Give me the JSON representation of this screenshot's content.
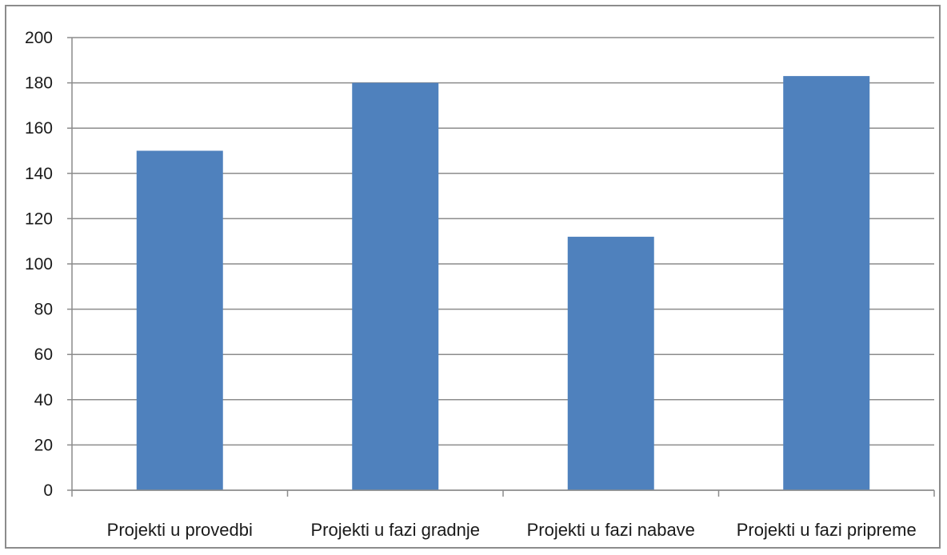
{
  "chart_data": {
    "type": "bar",
    "title": "",
    "xlabel": "",
    "ylabel": "",
    "categories": [
      "Projekti u provedbi",
      "Projekti u fazi gradnje",
      "Projekti u fazi nabave",
      "Projekti u fazi pripreme"
    ],
    "values": [
      150,
      180,
      112,
      183
    ],
    "ylim": [
      0,
      200
    ],
    "yticks": [
      0,
      20,
      40,
      60,
      80,
      100,
      120,
      140,
      160,
      180,
      200
    ],
    "grid": true,
    "legend": "none",
    "bar_color": "#4f81bd",
    "grid_color": "#8c8c8c"
  }
}
